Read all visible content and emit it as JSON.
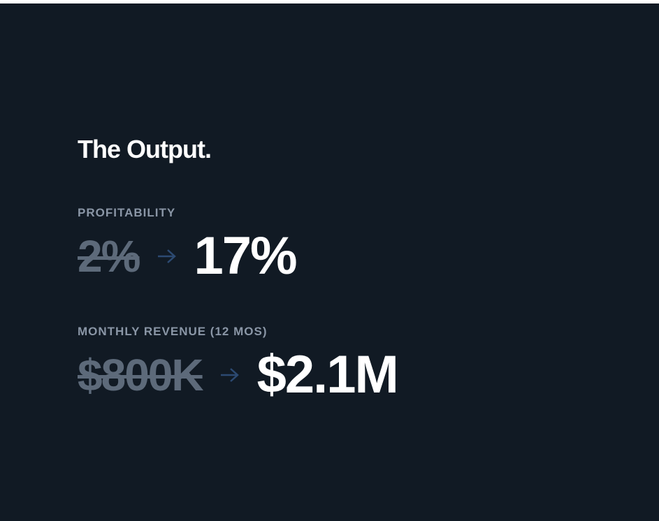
{
  "section": {
    "title": "The Output.",
    "metrics": [
      {
        "label": "PROFITABILITY",
        "before": "2%",
        "after": "17%"
      },
      {
        "label": "MONTHLY REVENUE (12 MOS)",
        "before": "$800K",
        "after": "$2.1M"
      }
    ]
  }
}
